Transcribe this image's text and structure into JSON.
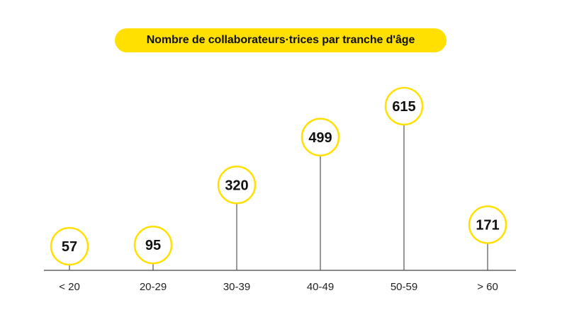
{
  "chart_data": {
    "type": "lollipop",
    "title": "Nombre de collaborateurs·trices par tranche d'âge",
    "categories": [
      "< 20",
      "20-29",
      "30-39",
      "40-49",
      "50-59",
      "> 60"
    ],
    "values": [
      57,
      95,
      320,
      499,
      615,
      171
    ],
    "ylim": [
      0,
      615
    ],
    "xlabel": "",
    "ylabel": "",
    "grid": false,
    "colors": {
      "accent": "#FFE000",
      "stem": "#555555",
      "text": "#111111"
    }
  }
}
